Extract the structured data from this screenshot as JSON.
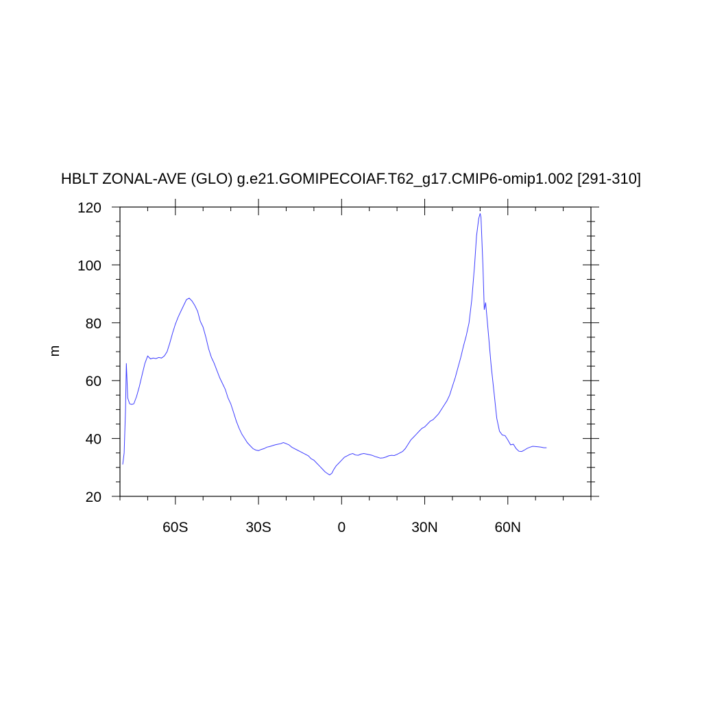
{
  "chart_data": {
    "type": "line",
    "title": "HBLT ZONAL-AVE (GLO) g.e21.GOMIPECOIAF.T62_g17.CMIP6-omip1.002 [291-310]",
    "xlabel": "",
    "ylabel": "m",
    "xlim": [
      -80,
      90
    ],
    "ylim": [
      20,
      120
    ],
    "x_ticks": [
      {
        "value": -60,
        "label": "60S"
      },
      {
        "value": -30,
        "label": "30S"
      },
      {
        "value": 0,
        "label": "0"
      },
      {
        "value": 30,
        "label": "30N"
      },
      {
        "value": 60,
        "label": "60N"
      }
    ],
    "y_ticks": [
      {
        "value": 20,
        "label": "20"
      },
      {
        "value": 40,
        "label": "40"
      },
      {
        "value": 60,
        "label": "60"
      },
      {
        "value": 80,
        "label": "80"
      },
      {
        "value": 100,
        "label": "100"
      },
      {
        "value": 120,
        "label": "120"
      }
    ],
    "grid": false,
    "line_color": "#3b3bff",
    "series": [
      {
        "values": [
          [
            -79,
            31
          ],
          [
            -78.5,
            35
          ],
          [
            -78,
            50
          ],
          [
            -77.7,
            66
          ],
          [
            -77.2,
            54
          ],
          [
            -76.5,
            52
          ],
          [
            -75.8,
            51.8
          ],
          [
            -75,
            52
          ],
          [
            -74,
            54.5
          ],
          [
            -73,
            58
          ],
          [
            -72,
            62
          ],
          [
            -71,
            66
          ],
          [
            -70,
            68.5
          ],
          [
            -69,
            67.5
          ],
          [
            -68,
            67.8
          ],
          [
            -67,
            67.6
          ],
          [
            -66,
            68
          ],
          [
            -65,
            67.8
          ],
          [
            -64,
            68.5
          ],
          [
            -63,
            70
          ],
          [
            -62,
            73
          ],
          [
            -61,
            76.5
          ],
          [
            -60,
            79.5
          ],
          [
            -59,
            82
          ],
          [
            -58,
            84
          ],
          [
            -57,
            86
          ],
          [
            -56,
            88
          ],
          [
            -55,
            88.5
          ],
          [
            -54,
            87.5
          ],
          [
            -53,
            86
          ],
          [
            -52,
            84
          ],
          [
            -51,
            80.5
          ],
          [
            -50,
            78.5
          ],
          [
            -49,
            75
          ],
          [
            -48,
            71
          ],
          [
            -47,
            68
          ],
          [
            -46,
            66
          ],
          [
            -45,
            63.5
          ],
          [
            -44,
            61
          ],
          [
            -43,
            59
          ],
          [
            -42,
            57
          ],
          [
            -41,
            54
          ],
          [
            -40,
            52
          ],
          [
            -39,
            49
          ],
          [
            -38,
            46
          ],
          [
            -37,
            43.5
          ],
          [
            -36,
            41.5
          ],
          [
            -35,
            40
          ],
          [
            -34,
            38.5
          ],
          [
            -33,
            37.5
          ],
          [
            -32,
            36.5
          ],
          [
            -31,
            36
          ],
          [
            -30,
            35.8
          ],
          [
            -29,
            36.2
          ],
          [
            -28,
            36.5
          ],
          [
            -27,
            37
          ],
          [
            -26,
            37.2
          ],
          [
            -25,
            37.5
          ],
          [
            -24,
            37.8
          ],
          [
            -23,
            38
          ],
          [
            -22,
            38.2
          ],
          [
            -21,
            38.6
          ],
          [
            -20,
            38.2
          ],
          [
            -19,
            37.8
          ],
          [
            -18,
            37
          ],
          [
            -17,
            36.5
          ],
          [
            -16,
            36
          ],
          [
            -15,
            35.5
          ],
          [
            -14,
            35
          ],
          [
            -13,
            34.5
          ],
          [
            -12,
            34
          ],
          [
            -11,
            33
          ],
          [
            -10,
            32.5
          ],
          [
            -9,
            31.5
          ],
          [
            -8,
            30.5
          ],
          [
            -7,
            29.5
          ],
          [
            -6,
            28.5
          ],
          [
            -5,
            27.8
          ],
          [
            -4.3,
            27.4
          ],
          [
            -3.5,
            28
          ],
          [
            -3,
            29
          ],
          [
            -2,
            30.5
          ],
          [
            -1,
            31.5
          ],
          [
            0,
            32.5
          ],
          [
            1,
            33.5
          ],
          [
            2,
            34
          ],
          [
            3,
            34.5
          ],
          [
            4,
            34.8
          ],
          [
            5,
            34.3
          ],
          [
            6,
            34.2
          ],
          [
            7,
            34.6
          ],
          [
            8,
            34.8
          ],
          [
            9,
            34.6
          ],
          [
            10,
            34.4
          ],
          [
            11,
            34.2
          ],
          [
            12,
            33.8
          ],
          [
            13,
            33.5
          ],
          [
            14,
            33.2
          ],
          [
            15,
            33.3
          ],
          [
            16,
            33.6
          ],
          [
            17,
            34
          ],
          [
            18,
            34.2
          ],
          [
            19,
            34.1
          ],
          [
            20,
            34.5
          ],
          [
            21,
            35
          ],
          [
            22,
            35.5
          ],
          [
            23,
            36.5
          ],
          [
            24,
            38
          ],
          [
            25,
            39.5
          ],
          [
            26,
            40.5
          ],
          [
            27,
            41.5
          ],
          [
            28,
            42.5
          ],
          [
            29,
            43.5
          ],
          [
            30,
            44
          ],
          [
            31,
            45
          ],
          [
            32,
            46
          ],
          [
            33,
            46.5
          ],
          [
            34,
            47.5
          ],
          [
            35,
            48.5
          ],
          [
            36,
            50
          ],
          [
            37,
            51.5
          ],
          [
            38,
            53
          ],
          [
            39,
            55
          ],
          [
            40,
            58
          ],
          [
            41,
            61
          ],
          [
            42,
            64.5
          ],
          [
            43,
            68
          ],
          [
            44,
            72
          ],
          [
            45,
            75.5
          ],
          [
            46,
            80
          ],
          [
            47,
            88
          ],
          [
            48,
            100
          ],
          [
            48.7,
            110
          ],
          [
            49.5,
            116
          ],
          [
            50,
            117.8
          ],
          [
            50.3,
            116.5
          ],
          [
            51,
            100
          ],
          [
            51.5,
            84.5
          ],
          [
            52,
            87
          ],
          [
            53,
            76
          ],
          [
            54,
            65
          ],
          [
            55,
            56
          ],
          [
            56,
            47
          ],
          [
            57,
            42.5
          ],
          [
            58,
            41.2
          ],
          [
            59,
            41
          ],
          [
            60,
            39.5
          ],
          [
            61,
            37.8
          ],
          [
            62,
            38
          ],
          [
            63,
            36.5
          ],
          [
            64,
            35.6
          ],
          [
            65,
            35.5
          ],
          [
            66,
            36
          ],
          [
            67,
            36.6
          ],
          [
            68,
            37
          ],
          [
            69,
            37.3
          ],
          [
            70,
            37.2
          ],
          [
            71,
            37.1
          ],
          [
            72,
            37
          ],
          [
            73,
            36.8
          ],
          [
            74,
            36.8
          ]
        ]
      }
    ]
  }
}
